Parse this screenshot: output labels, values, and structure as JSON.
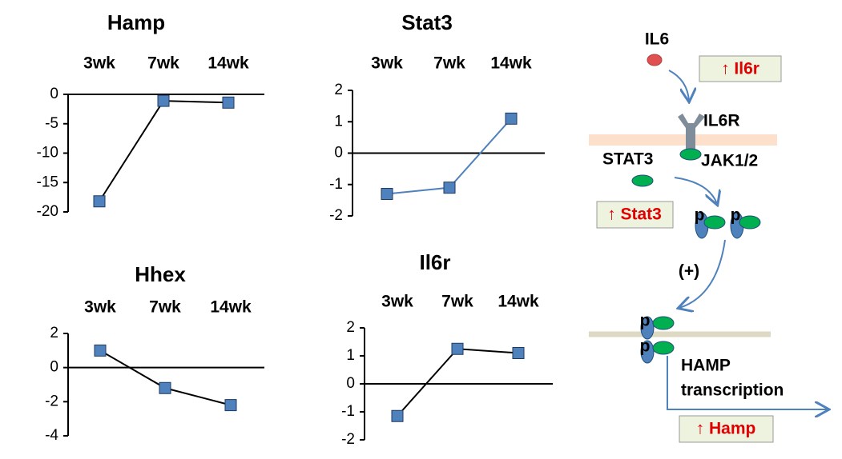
{
  "chart_data": [
    {
      "type": "line",
      "title": "Hamp",
      "categories": [
        "3wk",
        "7wk",
        "14wk"
      ],
      "values": [
        -18.2,
        -1.1,
        -1.4
      ],
      "ylim": [
        -20,
        0
      ],
      "yticks": [
        0,
        -5,
        -10,
        -15,
        -20
      ],
      "color": "#000000",
      "marker_color": "#4f81bd"
    },
    {
      "type": "line",
      "title": "Stat3",
      "categories": [
        "3wk",
        "7wk",
        "14wk"
      ],
      "values": [
        -1.3,
        -1.1,
        1.1
      ],
      "ylim": [
        -2,
        2
      ],
      "yticks": [
        2,
        1,
        0,
        -1,
        -2
      ],
      "color": "#4f81bd",
      "marker_color": "#4f81bd"
    },
    {
      "type": "line",
      "title": "Hhex",
      "categories": [
        "3wk",
        "7wk",
        "14wk"
      ],
      "values": [
        1.0,
        -1.2,
        -2.2
      ],
      "ylim": [
        -4,
        2
      ],
      "yticks": [
        2,
        0,
        -2,
        -4
      ],
      "color": "#000000",
      "marker_color": "#4f81bd"
    },
    {
      "type": "line",
      "title": "Il6r",
      "categories": [
        "3wk",
        "7wk",
        "14wk"
      ],
      "values": [
        -1.15,
        1.25,
        1.1
      ],
      "ylim": [
        -2,
        2
      ],
      "yticks": [
        2,
        1,
        0,
        -1,
        -2
      ],
      "color": "#000000",
      "marker_color": "#4f81bd"
    }
  ],
  "diagram": {
    "il6": "IL6",
    "il6r_up": "↑ Il6r",
    "il6r": "IL6R",
    "jak": "JAK1/2",
    "stat3": "STAT3",
    "stat3_up": "↑ Stat3",
    "p_labels": [
      "p",
      "p",
      "p",
      "p"
    ],
    "plus": "(+)",
    "hamp": "HAMP",
    "transcription": "transcription",
    "hamp_up": "↑ Hamp"
  }
}
